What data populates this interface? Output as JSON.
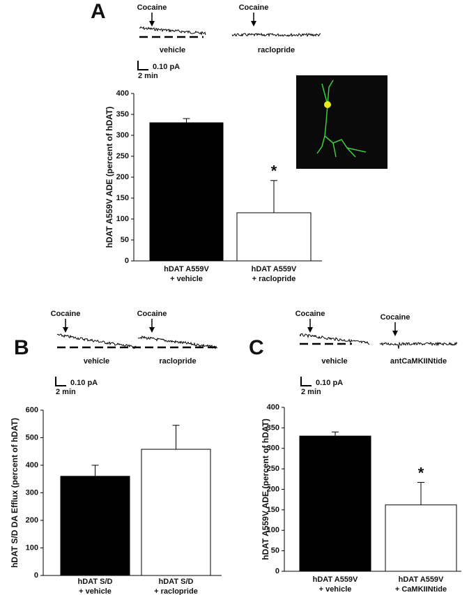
{
  "chart_data": [
    {
      "type": "bar",
      "panel": "A",
      "traces": [
        {
          "name": "vehicle",
          "event": "Cocaine"
        },
        {
          "name": "raclopride",
          "event": "Cocaine"
        }
      ],
      "scale_bar": {
        "y": "0.10 pA",
        "x": "2 min"
      },
      "y_label": "hDAT A559V ADE (percent of hDAT)",
      "categories": [
        [
          "hDAT A559V",
          "+ vehicle"
        ],
        [
          "hDAT A559V",
          "+ raclopride"
        ]
      ],
      "values": [
        330,
        115
      ],
      "errors": [
        10,
        77
      ],
      "significance": [
        null,
        "*"
      ],
      "colors": [
        "#000000",
        "#ffffff"
      ],
      "ylim": [
        0,
        400
      ],
      "yticks": [
        0,
        50,
        100,
        150,
        200,
        250,
        300,
        350,
        400
      ]
    },
    {
      "type": "bar",
      "panel": "B",
      "traces": [
        {
          "name": "vehicle",
          "event": "Cocaine"
        },
        {
          "name": "raclopride",
          "event": "Cocaine"
        }
      ],
      "scale_bar": {
        "y": "0.10 pA",
        "x": "2 min"
      },
      "y_label": "hDAT S/D DA Efflux (percent of hDAT)",
      "categories": [
        [
          "hDAT S/D",
          "+ vehicle"
        ],
        [
          "hDAT S/D",
          "+ raclopride"
        ]
      ],
      "values": [
        360,
        458
      ],
      "errors": [
        40,
        87
      ],
      "significance": [
        null,
        null
      ],
      "colors": [
        "#000000",
        "#ffffff"
      ],
      "ylim": [
        0,
        600
      ],
      "yticks": [
        0,
        100,
        200,
        300,
        400,
        500,
        600
      ]
    },
    {
      "type": "bar",
      "panel": "C",
      "traces": [
        {
          "name": "vehicle",
          "event": "Cocaine"
        },
        {
          "name": "antCaMKIINtide",
          "event": "Cocaine"
        }
      ],
      "scale_bar": {
        "y": "0.10 pA",
        "x": "2 min"
      },
      "y_label": "hDAT A559V ADE (percent of hDAT)",
      "categories": [
        [
          "hDAT A559V",
          "+ vehicle"
        ],
        [
          "hDAT A559V",
          "+ CaMKIINtide"
        ]
      ],
      "values": [
        330,
        162
      ],
      "errors": [
        10,
        55
      ],
      "significance": [
        null,
        "*"
      ],
      "colors": [
        "#000000",
        "#ffffff"
      ],
      "ylim": [
        0,
        400
      ],
      "yticks": [
        0,
        50,
        100,
        150,
        200,
        250,
        300,
        350,
        400
      ]
    }
  ]
}
